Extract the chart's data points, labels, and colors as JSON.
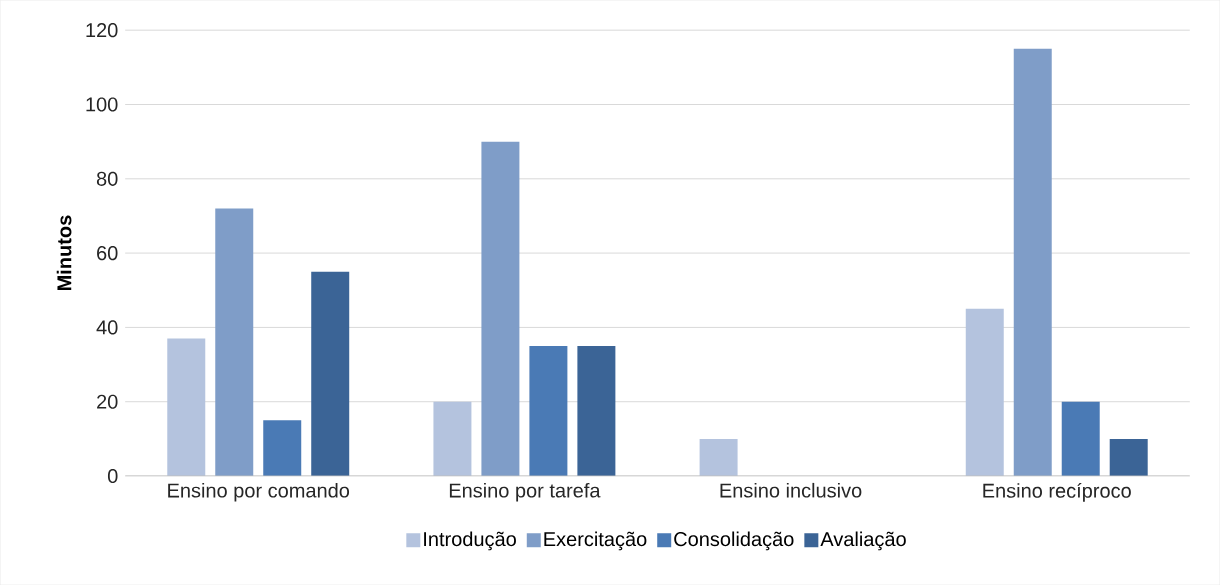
{
  "chart_data": {
    "type": "bar",
    "ylabel": "Minutos",
    "categories": [
      "Ensino por comando",
      "Ensino por tarefa",
      "Ensino inclusivo",
      "Ensino recíproco"
    ],
    "series": [
      {
        "name": "Introdução",
        "color": "#b4c3de",
        "values": [
          37,
          20,
          10,
          45
        ]
      },
      {
        "name": "Exercitação",
        "color": "#7f9dc8",
        "values": [
          72,
          90,
          null,
          115
        ]
      },
      {
        "name": "Consolidação",
        "color": "#4a7ab5",
        "values": [
          15,
          35,
          null,
          20
        ]
      },
      {
        "name": "Avaliação",
        "color": "#3b6496",
        "values": [
          55,
          35,
          null,
          10
        ]
      }
    ],
    "ylim": [
      0,
      120
    ],
    "yticks": [
      0,
      20,
      40,
      60,
      80,
      100,
      120
    ],
    "grid": "y",
    "legend": "bottom"
  }
}
